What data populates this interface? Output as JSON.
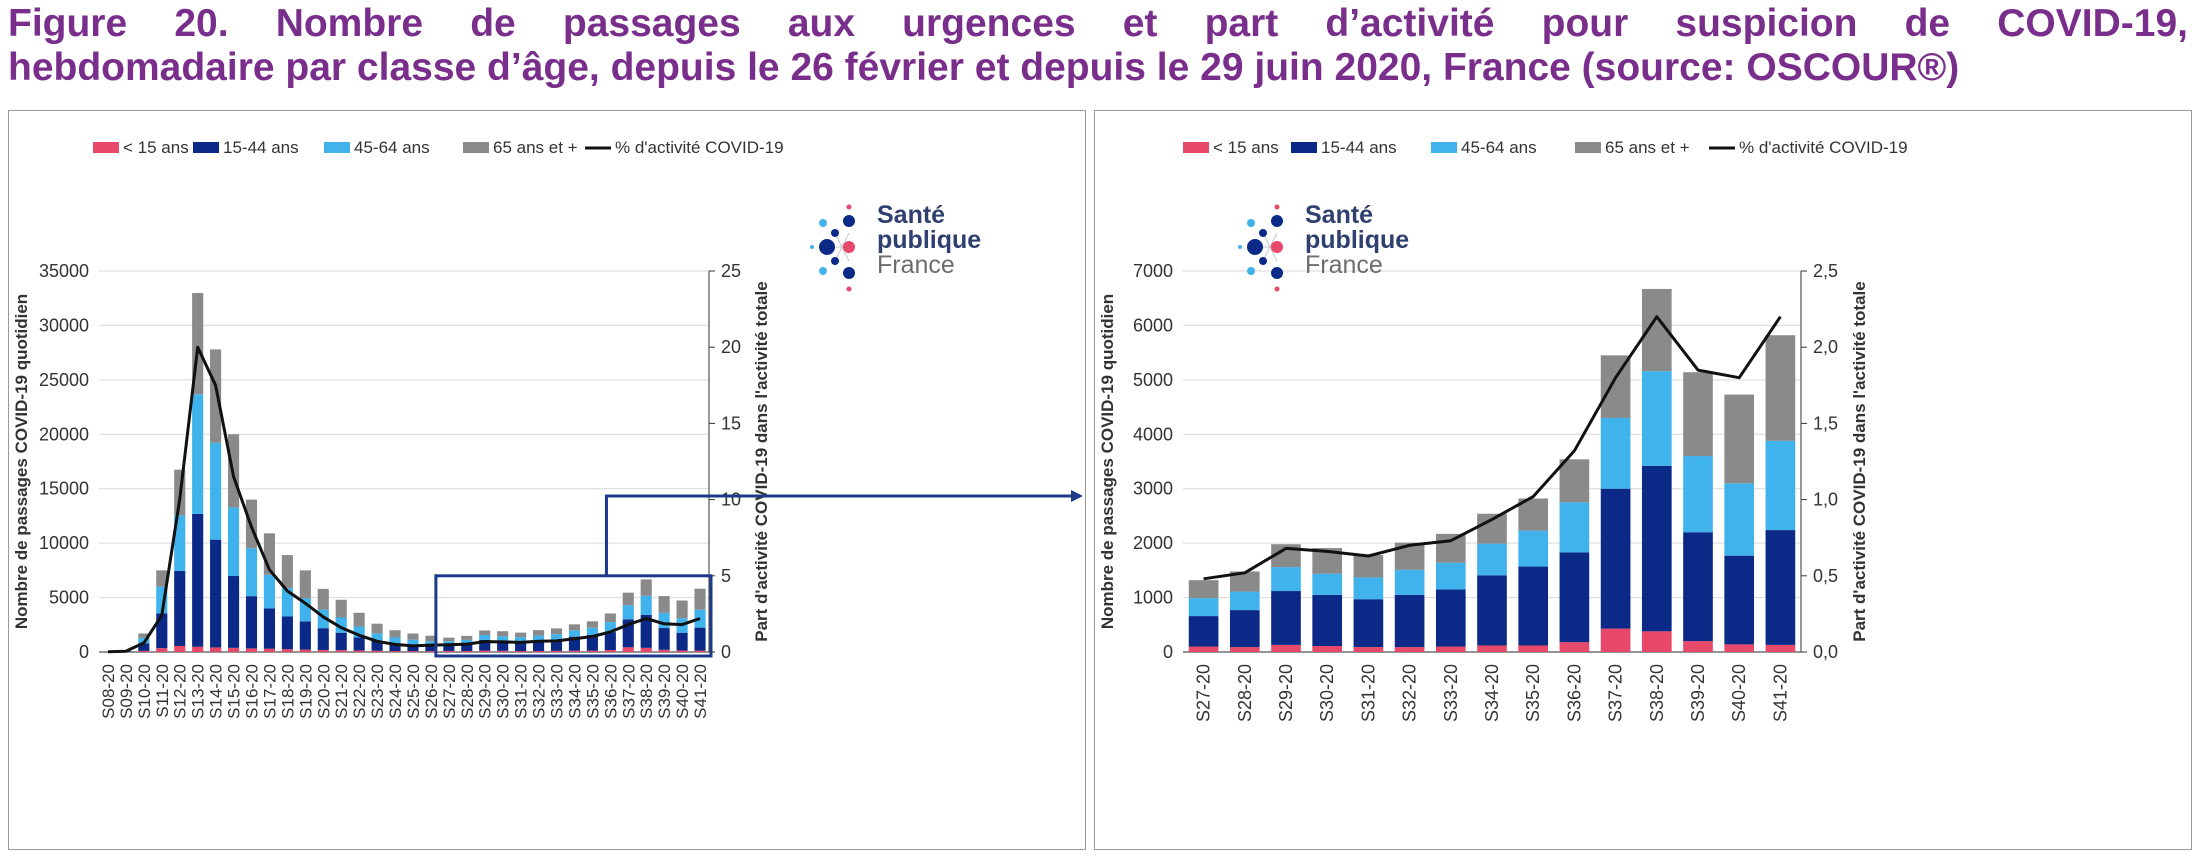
{
  "figure": {
    "title_line1": "Figure 20. Nombre de passages aux urgences et part d’activité pour suspicion de COVID-19,",
    "title_line2": "hebdomadaire par classe d’âge, depuis le 26 février et depuis le 29 juin 2020, France (source: OSCOUR®)"
  },
  "logo": {
    "line1": "Santé",
    "line2": "publique",
    "line3": "France"
  },
  "colors": {
    "lt15": "#e8496a",
    "15_44": "#0b2a87",
    "45_64": "#41b3ec",
    "65plus": "#8a8a8a",
    "line": "#111111",
    "title": "#7a2e8c",
    "highlight": "#1d3a8a"
  },
  "chart_data": [
    {
      "type": "bar",
      "stacked": true,
      "secondary_type": "line",
      "ylabel": "Nombre de passages COVID-19 quotidien",
      "y2label": "Part d'activité COVID-19 dans l'activité totale",
      "ylim": [
        0,
        35000
      ],
      "y2lim": [
        0,
        25
      ],
      "yticks": [
        "0",
        "5000",
        "10000",
        "15000",
        "20000",
        "25000",
        "30000",
        "35000"
      ],
      "y2ticks": [
        "0",
        "5",
        "10",
        "15",
        "20",
        "25"
      ],
      "legend": [
        "< 15 ans",
        "15-44 ans",
        "45-64 ans",
        "65 ans et +",
        "% d'activité COVID-19"
      ],
      "legend_position": "top",
      "grid": true,
      "categories": [
        "S08-20",
        "S09-20",
        "S10-20",
        "S11-20",
        "S12-20",
        "S13-20",
        "S14-20",
        "S15-20",
        "S16-20",
        "S17-20",
        "S18-20",
        "S19-20",
        "S20-20",
        "S21-20",
        "S22-20",
        "S23-20",
        "S24-20",
        "S25-20",
        "S26-20",
        "S27-20",
        "S28-20",
        "S29-20",
        "S30-20",
        "S31-20",
        "S32-20",
        "S33-20",
        "S34-20",
        "S35-20",
        "S36-20",
        "S37-20",
        "S38-20",
        "S39-20",
        "S40-20",
        "S41-20"
      ],
      "series": [
        {
          "name": "< 15 ans",
          "values": [
            5,
            10,
            100,
            350,
            550,
            480,
            420,
            380,
            330,
            300,
            260,
            220,
            190,
            170,
            140,
            110,
            90,
            80,
            80,
            100,
            90,
            130,
            110,
            90,
            90,
            100,
            120,
            120,
            180,
            430,
            380,
            200,
            140,
            130
          ]
        },
        {
          "name": "15-44 ans",
          "values": [
            20,
            40,
            700,
            3200,
            6900,
            12200,
            9900,
            6600,
            4800,
            3700,
            3000,
            2600,
            2000,
            1600,
            1200,
            900,
            700,
            600,
            500,
            560,
            680,
            990,
            940,
            880,
            960,
            1050,
            1290,
            1450,
            1650,
            2570,
            3040,
            2000,
            1630,
            2110
          ]
        },
        {
          "name": "45-64 ans",
          "values": [
            15,
            30,
            500,
            2450,
            5100,
            11000,
            8900,
            6300,
            4400,
            3100,
            2600,
            2100,
            1700,
            1400,
            1000,
            700,
            540,
            450,
            400,
            330,
            340,
            440,
            390,
            400,
            460,
            490,
            580,
            660,
            920,
            1300,
            1740,
            1400,
            1330,
            1640
          ]
        },
        {
          "name": "65 ans et +",
          "values": [
            10,
            20,
            400,
            1500,
            4200,
            9300,
            8580,
            6720,
            4470,
            3800,
            3040,
            2580,
            1910,
            1630,
            1260,
            890,
            670,
            570,
            520,
            330,
            370,
            420,
            470,
            410,
            500,
            530,
            550,
            590,
            790,
            1150,
            1510,
            1540,
            1630,
            1940
          ]
        },
        {
          "name": "% d'activité COVID-19",
          "axis": "secondary",
          "values": [
            0.02,
            0.05,
            0.6,
            2.4,
            10,
            20,
            17.5,
            11.5,
            8.2,
            5.4,
            4.0,
            3.2,
            2.3,
            1.6,
            1.1,
            0.7,
            0.5,
            0.4,
            0.45,
            0.48,
            0.52,
            0.68,
            0.66,
            0.63,
            0.7,
            0.73,
            0.87,
            1.02,
            1.32,
            1.8,
            2.2,
            1.85,
            1.8,
            2.2
          ]
        }
      ]
    },
    {
      "type": "bar",
      "stacked": true,
      "secondary_type": "line",
      "ylabel": "Nombre de passages COVID-19 quotidien",
      "y2label": "Part d'activité COVID-19 dans l'activité totale",
      "ylim": [
        0,
        7000
      ],
      "y2lim": [
        0,
        2.5
      ],
      "yticks": [
        "0",
        "1000",
        "2000",
        "3000",
        "4000",
        "5000",
        "6000",
        "7000"
      ],
      "y2ticks": [
        "0,0",
        "0,5",
        "1,0",
        "1,5",
        "2,0",
        "2,5"
      ],
      "legend": [
        "< 15 ans",
        "15-44 ans",
        "45-64 ans",
        "65 ans et +",
        "% d'activité COVID-19"
      ],
      "legend_position": "top",
      "grid": true,
      "categories": [
        "S27-20",
        "S28-20",
        "S29-20",
        "S30-20",
        "S31-20",
        "S32-20",
        "S33-20",
        "S34-20",
        "S35-20",
        "S36-20",
        "S37-20",
        "S38-20",
        "S39-20",
        "S40-20",
        "S41-20"
      ],
      "series": [
        {
          "name": "< 15 ans",
          "values": [
            100,
            90,
            130,
            110,
            90,
            90,
            100,
            120,
            120,
            180,
            430,
            380,
            200,
            140,
            130
          ]
        },
        {
          "name": "15-44 ans",
          "values": [
            560,
            680,
            990,
            940,
            880,
            960,
            1050,
            1290,
            1450,
            1650,
            2570,
            3040,
            2000,
            1630,
            2110
          ]
        },
        {
          "name": "45-64 ans",
          "values": [
            330,
            340,
            440,
            390,
            400,
            460,
            490,
            580,
            660,
            920,
            1300,
            1740,
            1400,
            1330,
            1640
          ]
        },
        {
          "name": "65 ans et +",
          "values": [
            330,
            370,
            420,
            470,
            410,
            500,
            530,
            550,
            590,
            790,
            1150,
            1510,
            1540,
            1630,
            1940
          ]
        },
        {
          "name": "% d'activité COVID-19",
          "axis": "secondary",
          "values": [
            0.48,
            0.52,
            0.68,
            0.66,
            0.63,
            0.7,
            0.73,
            0.87,
            1.02,
            1.32,
            1.8,
            2.2,
            1.85,
            1.8,
            2.2
          ]
        }
      ]
    }
  ]
}
